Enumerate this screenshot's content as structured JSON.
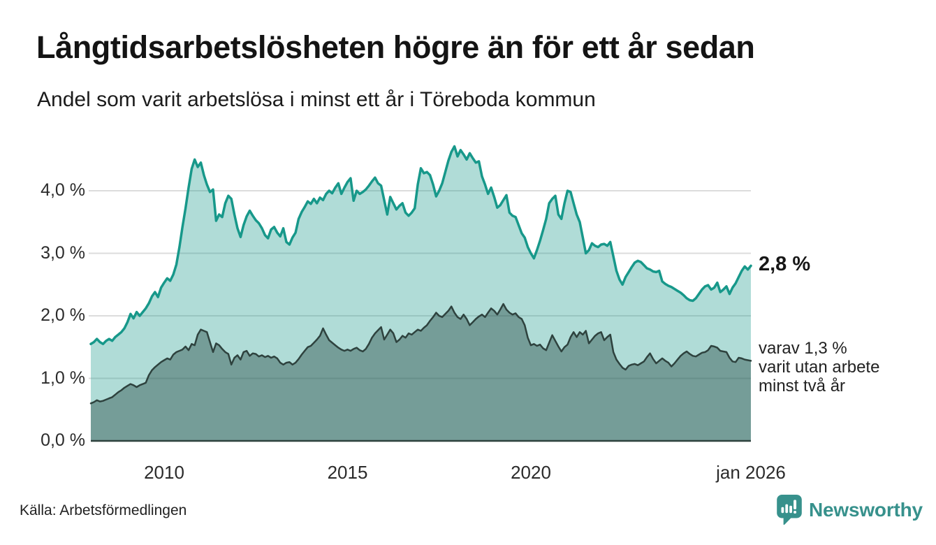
{
  "header": {
    "title": "Långtidsarbetslösheten högre än för ett år sedan",
    "subtitle": "Andel som varit arbetslösa i minst ett år i Töreboda kommun"
  },
  "annotations": {
    "current_value": "2,8 %",
    "secondary_lines": [
      "varav 1,3 %",
      "varit utan arbete",
      "minst två år"
    ]
  },
  "footer": {
    "source": "Källa: Arbetsförmedlingen",
    "brand": "Newsworthy",
    "brand_color": "#37918c"
  },
  "chart_data": {
    "type": "area",
    "title": "Långtidsarbetslösheten högre än för ett år sedan",
    "subtitle": "Andel som varit arbetslösa i minst ett år i Töreboda kommun",
    "xlabel": "",
    "ylabel": "",
    "x_start": 2008.0,
    "x_step": 0.0833333,
    "x_end": 2026.0,
    "ylim": [
      0,
      4.8
    ],
    "grid": "horizontal",
    "background": "#ffffff",
    "gridline_color": "#dcdcdc",
    "x_ticks": [
      {
        "value": 2010,
        "label": "2010"
      },
      {
        "value": 2015,
        "label": "2015"
      },
      {
        "value": 2020,
        "label": "2020"
      },
      {
        "value": 2026,
        "label": "jan 2026"
      }
    ],
    "y_ticks": [
      {
        "value": 4.0,
        "label": "4,0 %"
      },
      {
        "value": 3.0,
        "label": "3,0 %"
      },
      {
        "value": 2.0,
        "label": "2,0 %"
      },
      {
        "value": 1.0,
        "label": "1,0 %"
      },
      {
        "value": 0.0,
        "label": "0,0 %"
      }
    ],
    "series": [
      {
        "name": "Arbetslösa minst ett år",
        "color": "#17988a",
        "fill": "rgba(23,152,138,0.34)",
        "stroke_width": 3.5,
        "last_value": 2.8,
        "values": [
          1.55,
          1.58,
          1.63,
          1.58,
          1.55,
          1.6,
          1.63,
          1.6,
          1.66,
          1.7,
          1.74,
          1.8,
          1.9,
          2.03,
          1.96,
          2.06,
          2.0,
          2.06,
          2.12,
          2.2,
          2.31,
          2.38,
          2.3,
          2.45,
          2.53,
          2.6,
          2.56,
          2.66,
          2.82,
          3.1,
          3.42,
          3.72,
          4.05,
          4.35,
          4.5,
          4.38,
          4.45,
          4.25,
          4.1,
          3.98,
          4.02,
          3.52,
          3.62,
          3.58,
          3.8,
          3.92,
          3.87,
          3.62,
          3.4,
          3.26,
          3.45,
          3.59,
          3.68,
          3.6,
          3.53,
          3.48,
          3.4,
          3.29,
          3.24,
          3.38,
          3.42,
          3.33,
          3.27,
          3.4,
          3.18,
          3.14,
          3.25,
          3.33,
          3.55,
          3.66,
          3.74,
          3.83,
          3.79,
          3.87,
          3.8,
          3.89,
          3.85,
          3.95,
          4.0,
          3.96,
          4.05,
          4.12,
          3.95,
          4.05,
          4.14,
          4.2,
          3.84,
          4.0,
          3.95,
          3.98,
          4.02,
          4.08,
          4.15,
          4.21,
          4.12,
          4.08,
          3.85,
          3.62,
          3.9,
          3.8,
          3.7,
          3.76,
          3.8,
          3.65,
          3.6,
          3.65,
          3.72,
          4.1,
          4.36,
          4.28,
          4.3,
          4.25,
          4.1,
          3.91,
          4.0,
          4.12,
          4.3,
          4.48,
          4.62,
          4.71,
          4.55,
          4.65,
          4.58,
          4.5,
          4.6,
          4.52,
          4.45,
          4.47,
          4.23,
          4.1,
          3.95,
          4.05,
          3.9,
          3.73,
          3.77,
          3.85,
          3.93,
          3.65,
          3.6,
          3.58,
          3.45,
          3.32,
          3.25,
          3.1,
          3.0,
          2.92,
          3.05,
          3.2,
          3.37,
          3.55,
          3.8,
          3.87,
          3.92,
          3.62,
          3.55,
          3.8,
          4.0,
          3.98,
          3.8,
          3.62,
          3.5,
          3.25,
          3.0,
          3.05,
          3.16,
          3.12,
          3.1,
          3.14,
          3.15,
          3.12,
          3.18,
          2.95,
          2.72,
          2.58,
          2.5,
          2.62,
          2.7,
          2.78,
          2.85,
          2.88,
          2.86,
          2.81,
          2.76,
          2.74,
          2.71,
          2.7,
          2.72,
          2.55,
          2.51,
          2.48,
          2.46,
          2.43,
          2.4,
          2.37,
          2.33,
          2.28,
          2.25,
          2.24,
          2.28,
          2.35,
          2.42,
          2.47,
          2.49,
          2.42,
          2.45,
          2.53,
          2.38,
          2.42,
          2.47,
          2.35,
          2.45,
          2.52,
          2.62,
          2.72,
          2.79,
          2.74,
          2.8
        ]
      },
      {
        "name": "Arbetslösa minst två år",
        "color": "#2e423e",
        "fill": "rgba(35,70,64,0.42)",
        "stroke_width": 2.5,
        "last_value": 1.3,
        "values": [
          0.6,
          0.62,
          0.65,
          0.63,
          0.64,
          0.66,
          0.68,
          0.7,
          0.74,
          0.78,
          0.81,
          0.85,
          0.88,
          0.91,
          0.89,
          0.86,
          0.89,
          0.91,
          0.93,
          1.05,
          1.13,
          1.18,
          1.22,
          1.26,
          1.29,
          1.32,
          1.3,
          1.38,
          1.42,
          1.44,
          1.46,
          1.51,
          1.45,
          1.55,
          1.53,
          1.7,
          1.78,
          1.76,
          1.74,
          1.58,
          1.42,
          1.56,
          1.53,
          1.47,
          1.42,
          1.39,
          1.22,
          1.33,
          1.37,
          1.3,
          1.42,
          1.44,
          1.36,
          1.4,
          1.39,
          1.35,
          1.37,
          1.34,
          1.36,
          1.33,
          1.35,
          1.32,
          1.25,
          1.22,
          1.25,
          1.26,
          1.22,
          1.25,
          1.31,
          1.38,
          1.44,
          1.5,
          1.52,
          1.57,
          1.62,
          1.68,
          1.8,
          1.7,
          1.61,
          1.57,
          1.53,
          1.49,
          1.46,
          1.44,
          1.46,
          1.44,
          1.47,
          1.49,
          1.45,
          1.43,
          1.47,
          1.55,
          1.65,
          1.72,
          1.77,
          1.82,
          1.62,
          1.7,
          1.78,
          1.72,
          1.58,
          1.62,
          1.68,
          1.65,
          1.72,
          1.7,
          1.74,
          1.78,
          1.76,
          1.81,
          1.85,
          1.92,
          1.98,
          2.05,
          2.0,
          1.98,
          2.03,
          2.08,
          2.15,
          2.05,
          1.98,
          1.95,
          2.02,
          1.95,
          1.85,
          1.9,
          1.95,
          1.99,
          2.02,
          1.98,
          2.05,
          2.12,
          2.08,
          2.02,
          2.1,
          2.19,
          2.1,
          2.05,
          2.02,
          2.04,
          1.98,
          1.95,
          1.85,
          1.65,
          1.53,
          1.55,
          1.52,
          1.54,
          1.48,
          1.45,
          1.57,
          1.69,
          1.6,
          1.51,
          1.43,
          1.5,
          1.54,
          1.66,
          1.74,
          1.66,
          1.74,
          1.7,
          1.76,
          1.56,
          1.62,
          1.68,
          1.72,
          1.74,
          1.61,
          1.66,
          1.7,
          1.42,
          1.3,
          1.23,
          1.17,
          1.14,
          1.2,
          1.22,
          1.23,
          1.21,
          1.24,
          1.27,
          1.34,
          1.4,
          1.31,
          1.24,
          1.28,
          1.32,
          1.28,
          1.25,
          1.19,
          1.24,
          1.3,
          1.36,
          1.4,
          1.43,
          1.39,
          1.36,
          1.35,
          1.38,
          1.41,
          1.42,
          1.45,
          1.52,
          1.51,
          1.49,
          1.44,
          1.43,
          1.42,
          1.33,
          1.27,
          1.26,
          1.33,
          1.32,
          1.3,
          1.29,
          1.28
        ]
      }
    ]
  }
}
